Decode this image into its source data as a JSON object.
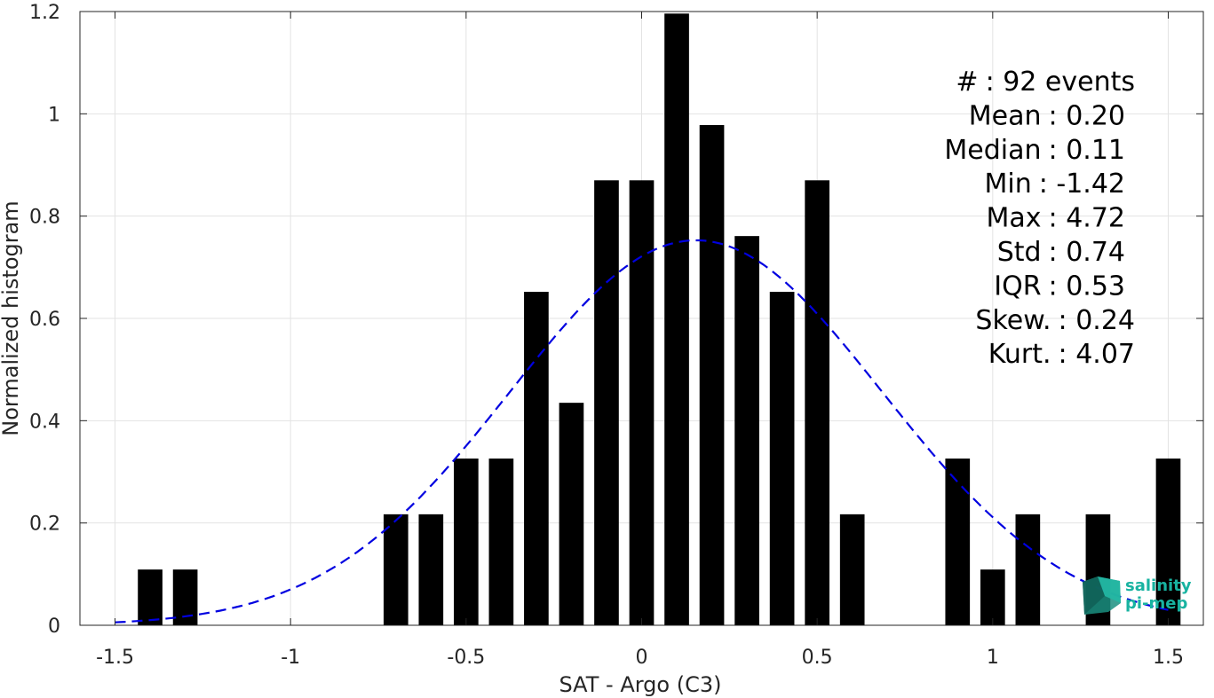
{
  "chart_data": {
    "type": "bar",
    "xlabel": "SAT - Argo (C3)",
    "ylabel": "Normalized histogram",
    "xlim": [
      -1.6,
      1.6
    ],
    "ylim": [
      0,
      1.2
    ],
    "xticks": [
      -1.5,
      -1,
      -0.5,
      0,
      0.5,
      1,
      1.5
    ],
    "xtick_labels": [
      "-1.5",
      "-1",
      "-0.5",
      "0",
      "0.5",
      "1",
      "1.5"
    ],
    "yticks": [
      0,
      0.2,
      0.4,
      0.6,
      0.8,
      1,
      1.2
    ],
    "ytick_labels": [
      "0",
      "0.2",
      "0.4",
      "0.6",
      "0.8",
      "1",
      "1.2"
    ],
    "grid": true,
    "bar_width": 0.07,
    "bar_color": "#000000",
    "bars": {
      "x": [
        -1.4,
        -1.3,
        -0.7,
        -0.6,
        -0.5,
        -0.4,
        -0.3,
        -0.2,
        -0.1,
        0.0,
        0.1,
        0.2,
        0.3,
        0.4,
        0.5,
        0.6,
        0.9,
        1.0,
        1.1,
        1.3,
        1.5
      ],
      "values": [
        0.109,
        0.109,
        0.217,
        0.217,
        0.326,
        0.326,
        0.652,
        0.435,
        0.87,
        0.87,
        1.196,
        0.978,
        0.761,
        0.652,
        0.87,
        0.217,
        0.326,
        0.109,
        0.217,
        0.217,
        0.326
      ]
    },
    "fit_curve": {
      "style": "dashed",
      "color": "#0000e0",
      "mean": 0.155,
      "std": 0.53,
      "x_range": [
        -1.5,
        1.5
      ]
    },
    "stats": [
      {
        "key": "#",
        "value": ": 92 events"
      },
      {
        "key": "Mean",
        "value": ": 0.20"
      },
      {
        "key": "Median",
        "value": ": 0.11"
      },
      {
        "key": "Min",
        "value": ": -1.42"
      },
      {
        "key": "Max",
        "value": ": 4.72"
      },
      {
        "key": "Std",
        "value": ": 0.74"
      },
      {
        "key": "IQR",
        "value": ": 0.53"
      },
      {
        "key": "Skew.",
        "value": ": 0.24"
      },
      {
        "key": "Kurt.",
        "value": ": 4.07"
      }
    ]
  },
  "logo": {
    "line1": "salinity",
    "line2": "pi-mep",
    "color": "#18b3a1"
  }
}
